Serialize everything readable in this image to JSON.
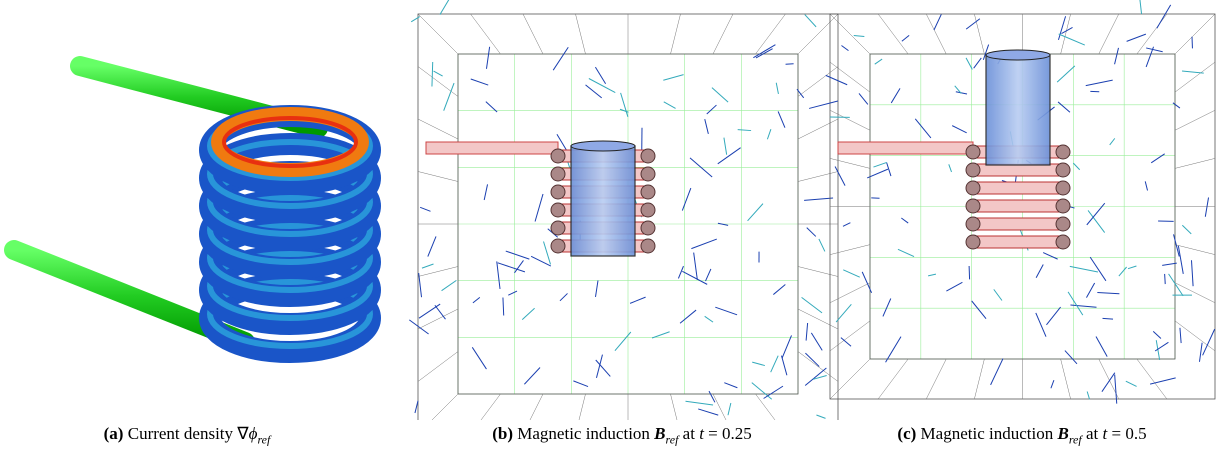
{
  "figures": [
    {
      "label": "(a)",
      "text": "Current density ∇",
      "symbol": "ϕ",
      "subscript": "ref"
    },
    {
      "label": "(b)",
      "text": "Magnetic induction",
      "symbol": "B",
      "subscript": "ref",
      "connector": "at",
      "variable": "t",
      "equals": "= 0.25"
    },
    {
      "label": "(c)",
      "text": "Magnetic induction",
      "symbol": "B",
      "subscript": "ref",
      "connector": "at",
      "variable": "t",
      "equals": "= 0.5"
    }
  ]
}
